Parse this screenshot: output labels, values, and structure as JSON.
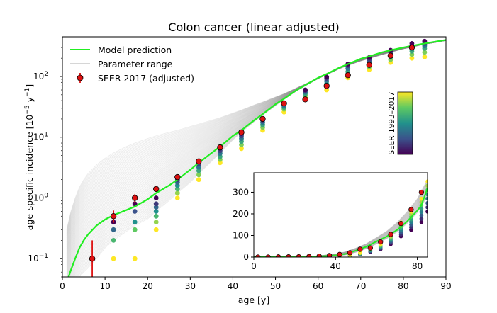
{
  "chart_data": [
    {
      "type": "scatter",
      "title": "Colon cancer (linear adjusted)",
      "xlabel": "age [y]",
      "ylabel": "age-specific incidence [10⁻⁵ y⁻¹]",
      "ylabel_parts": {
        "main": "age-specific incidence [10",
        "sup1": "−5",
        "mid": " y",
        "sup2": "−1",
        "end": "]"
      },
      "x_scale": "linear",
      "y_scale": "log",
      "xlim": [
        0,
        90
      ],
      "ylim": [
        0.05,
        450
      ],
      "x_ticks": [
        0,
        10,
        20,
        30,
        40,
        50,
        60,
        70,
        80,
        90
      ],
      "y_ticks": [
        {
          "value": 0.1,
          "base": "10",
          "exp": "−1"
        },
        {
          "value": 1,
          "label": "10",
          "exp": "0"
        },
        {
          "value": 10,
          "base": "10",
          "exp": "1"
        },
        {
          "value": 100,
          "base": "10",
          "exp": "2"
        }
      ],
      "legend_position": "top-left",
      "legend": [
        {
          "label": "Model prediction",
          "color": "#22ee22"
        },
        {
          "label": "Parameter range",
          "color": "#cccccc"
        },
        {
          "label": "SEER 2017 (adjusted)",
          "color": "#dd1111"
        }
      ],
      "model_prediction": {
        "name": "Model prediction",
        "color": "#22ee22",
        "x": [
          1,
          2,
          3,
          4,
          5,
          6,
          8,
          10,
          12,
          15,
          17,
          20,
          22,
          25,
          27,
          30,
          32,
          35,
          37,
          40,
          42,
          45,
          47,
          50,
          52,
          55,
          57,
          60,
          62,
          65,
          67,
          70,
          72,
          75,
          77,
          80,
          82,
          85,
          88,
          90
        ],
        "y": [
          0.04,
          0.065,
          0.1,
          0.15,
          0.2,
          0.25,
          0.35,
          0.44,
          0.52,
          0.63,
          0.72,
          0.95,
          1.2,
          1.6,
          2.0,
          2.9,
          3.8,
          5.5,
          7.0,
          10.5,
          13.0,
          19.0,
          24.0,
          35.0,
          43.0,
          60.0,
          72.0,
          95.0,
          110.0,
          140.0,
          160.0,
          195.0,
          215.0,
          250.0,
          270.0,
          300.0,
          320.0,
          350.0,
          380.0,
          400.0
        ]
      },
      "seer_2017": {
        "name": "SEER 2017 (adjusted)",
        "color": "#dd1111",
        "x": [
          7,
          12,
          17,
          22,
          27,
          32,
          37,
          42,
          47,
          52,
          57,
          62,
          67,
          72,
          77,
          82
        ],
        "y": [
          0.1,
          0.5,
          1.0,
          1.4,
          2.2,
          4.0,
          6.8,
          12.0,
          20.0,
          36.0,
          42.0,
          70.0,
          105.0,
          155.0,
          220.0,
          300.0
        ],
        "y_err_low": [
          0.05,
          0.39,
          0.85,
          1.3,
          2.1,
          3.9,
          6.7,
          11.9,
          19.8,
          35.8,
          41.8,
          69.7,
          104.7,
          154.6,
          219.5,
          299.3
        ],
        "y_err_high": [
          0.2,
          0.62,
          1.15,
          1.5,
          2.3,
          4.1,
          6.9,
          12.1,
          20.2,
          36.2,
          42.2,
          70.3,
          105.3,
          155.4,
          220.5,
          300.7
        ]
      },
      "seer_1993_2017": {
        "name": "SEER 1993–2017",
        "x_offset": 5,
        "colorbar_label": "SEER 1993–2017",
        "columns": [
          {
            "age": 7,
            "values": [
              0.1
            ]
          },
          {
            "age": 12,
            "values": [
              0.1,
              0.2,
              0.3,
              0.4
            ]
          },
          {
            "age": 17,
            "values": [
              0.1,
              0.3,
              0.4,
              0.6,
              0.8
            ]
          },
          {
            "age": 22,
            "values": [
              0.3,
              0.4,
              0.5,
              0.6,
              0.7,
              0.8,
              1.0
            ]
          },
          {
            "age": 27,
            "values": [
              1.0,
              1.2,
              1.4,
              1.6,
              1.8,
              2.0,
              2.2
            ]
          },
          {
            "age": 32,
            "values": [
              2.0,
              2.4,
              2.8,
              3.2,
              3.6,
              4.0
            ]
          },
          {
            "age": 37,
            "values": [
              3.8,
              4.3,
              4.8,
              5.4,
              6.0,
              6.6
            ]
          },
          {
            "age": 42,
            "values": [
              6.5,
              7.5,
              8.5,
              9.5,
              10.5,
              11.5
            ]
          },
          {
            "age": 47,
            "values": [
              13,
              14.5,
              16,
              17.5,
              19,
              20
            ]
          },
          {
            "age": 52,
            "values": [
              26,
              29,
              31,
              33,
              35,
              36
            ]
          },
          {
            "age": 57,
            "values": [
              45,
              49,
              52,
              55,
              58,
              60
            ]
          },
          {
            "age": 62,
            "values": [
              60,
              68,
              76,
              84,
              92,
              98
            ]
          },
          {
            "age": 67,
            "values": [
              95,
              108,
              120,
              135,
              150,
              160
            ]
          },
          {
            "age": 72,
            "values": [
              130,
              145,
              160,
              175,
              190,
              205
            ]
          },
          {
            "age": 77,
            "values": [
              170,
              190,
              210,
              230,
              250,
              270
            ]
          },
          {
            "age": 82,
            "values": [
              200,
              230,
              260,
              290,
              320,
              350
            ]
          },
          {
            "age": 85,
            "values": [
              210,
              250,
              290,
              320,
              350,
              380
            ]
          }
        ]
      },
      "parameter_range": {
        "name": "Parameter range",
        "color": "#999999",
        "y_low": [
          0.02,
          0.03,
          0.04,
          0.05,
          0.06,
          0.07,
          0.1,
          0.15,
          0.2,
          0.28,
          0.35,
          0.45,
          0.6,
          0.9,
          1.2,
          1.8,
          2.5,
          4.0,
          5.5,
          9.0,
          12.0,
          18.0,
          23.0,
          33.0,
          42.0,
          58.0,
          70.0,
          92.0,
          107.0,
          135.0,
          155.0,
          190.0,
          210.0,
          245.0,
          265.0,
          295.0,
          315.0,
          345.0,
          370.0,
          390.0
        ],
        "y_high": [
          0.3,
          0.6,
          1.0,
          1.5,
          2.0,
          2.5,
          3.5,
          4.5,
          5.5,
          7.0,
          8.0,
          9.5,
          10.5,
          12.0,
          13.0,
          15.0,
          16.5,
          19.0,
          21.0,
          25.0,
          28.0,
          34.0,
          38.0,
          46.0,
          52.0,
          65.0,
          75.0,
          95.0,
          108.0,
          135.0,
          152.0,
          180.0,
          198.0,
          228.0,
          250.0,
          285.0,
          305.0,
          340.0,
          370.0,
          400.0
        ]
      },
      "colorbar": {
        "label": "SEER 1993–2017",
        "colors": [
          "#440154",
          "#3b528b",
          "#21918c",
          "#5ec962",
          "#fde725"
        ]
      }
    },
    {
      "type": "scatter",
      "title": "",
      "xlabel": "",
      "ylabel": "",
      "x_scale": "linear",
      "y_scale": "linear",
      "xlim": [
        0,
        85
      ],
      "ylim": [
        0,
        390
      ],
      "x_ticks": [
        0,
        40,
        80
      ],
      "y_ticks": [
        0,
        100,
        200,
        300
      ],
      "model_prediction": {
        "x": [
          0,
          10,
          20,
          30,
          40,
          45,
          50,
          55,
          60,
          65,
          70,
          72,
          75,
          77,
          80,
          82,
          85
        ],
        "y": [
          0,
          0,
          1,
          2,
          8,
          15,
          30,
          48,
          72,
          95,
          125,
          140,
          165,
          185,
          215,
          240,
          320
        ]
      },
      "seer_2017": {
        "x": [
          2,
          7,
          12,
          17,
          22,
          27,
          32,
          37,
          42,
          47,
          52,
          57,
          62,
          67,
          72,
          77,
          82
        ],
        "y": [
          0,
          0,
          0.5,
          1,
          1.4,
          2.2,
          4,
          6.8,
          12,
          20,
          36,
          42,
          70,
          105,
          155,
          220,
          300
        ]
      },
      "seer_1993_2017_top": [
        0,
        0,
        0,
        0,
        0,
        1,
        2,
        4,
        10,
        20,
        40,
        60,
        100,
        160,
        210,
        270,
        350
      ]
    }
  ]
}
